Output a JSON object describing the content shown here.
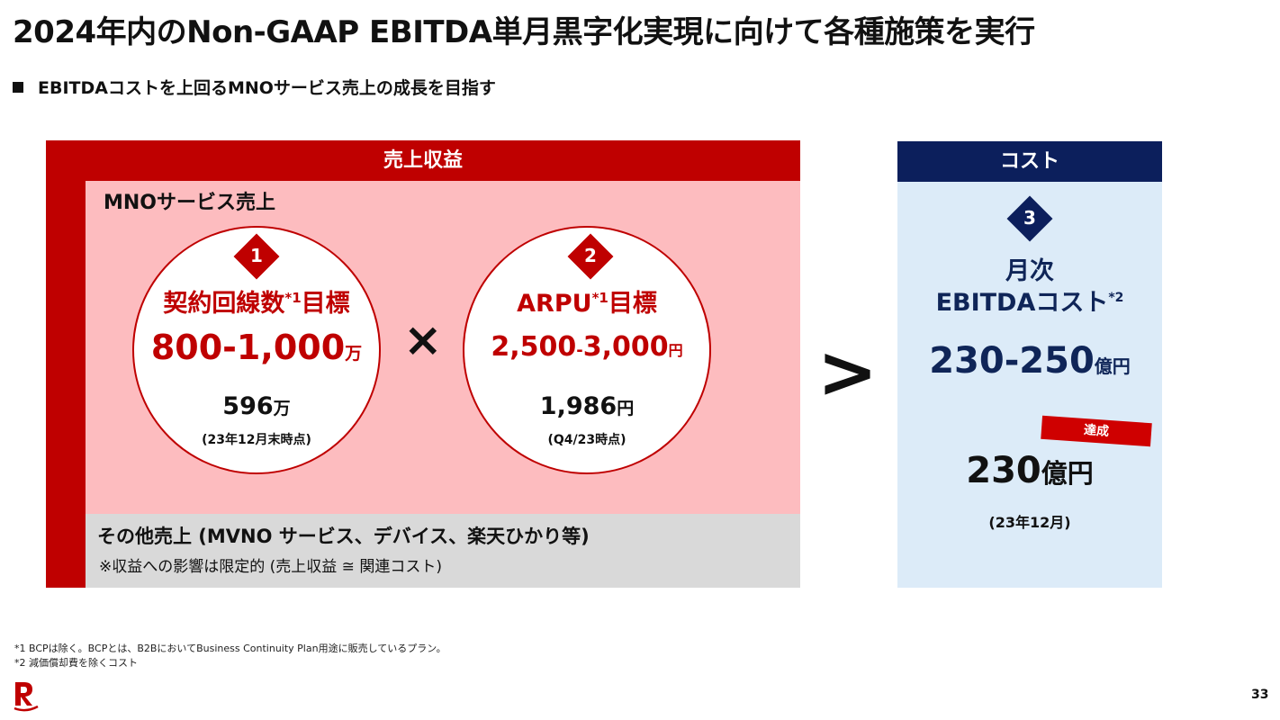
{
  "title": "2024年内のNon-GAAP EBITDA単月黒字化実現に向けて各種施策を実行",
  "subtitle": "EBITDAコストを上回るMNOサービス売上の成長を目指す",
  "revenue": {
    "header": "売上収益",
    "mno_label": "MNOサービス売上",
    "circle1": {
      "num": "1",
      "label": "契約回線数",
      "sup": "*1",
      "label2": "目標",
      "target": "800-1,000",
      "target_unit": "万",
      "current": "596",
      "current_unit": "万",
      "current_note": "(23年12月末時点)"
    },
    "operator": "×",
    "circle2": {
      "num": "2",
      "label": "ARPU",
      "sup": "*1",
      "label2": "目標",
      "target_a": "2,500",
      "target_dash": "-",
      "target_b": "3,000",
      "target_unit": "円",
      "current": "1,986",
      "current_unit": "円",
      "current_note": "(Q4/23時点)"
    },
    "other_main": "その他売上 (MVNO サービス、デバイス、楽天ひかり等)",
    "other_note": "※収益への影響は限定的 (売上収益 ≅ 関連コスト)"
  },
  "comparison": ">",
  "cost": {
    "header": "コスト",
    "num": "3",
    "label1": "月次",
    "label2": "EBITDAコスト",
    "sup": "*2",
    "target": "230-250",
    "target_unit": "億円",
    "badge": "達成",
    "achieved": "230",
    "achieved_unit": "億円",
    "achieved_note": "(23年12月)"
  },
  "footnotes": [
    "*1 BCPは除く。BCPとは、B2BにおいてBusiness Continuity Plan用途に販売しているプラン。",
    "*2 減価償却費を除くコスト"
  ],
  "page_number": "33",
  "colors": {
    "brand_red": "#bf0000",
    "navy": "#0c1f5c",
    "pink": "#fdbcbf",
    "light_blue": "#dcebf8",
    "gray": "#d9d9d9"
  }
}
